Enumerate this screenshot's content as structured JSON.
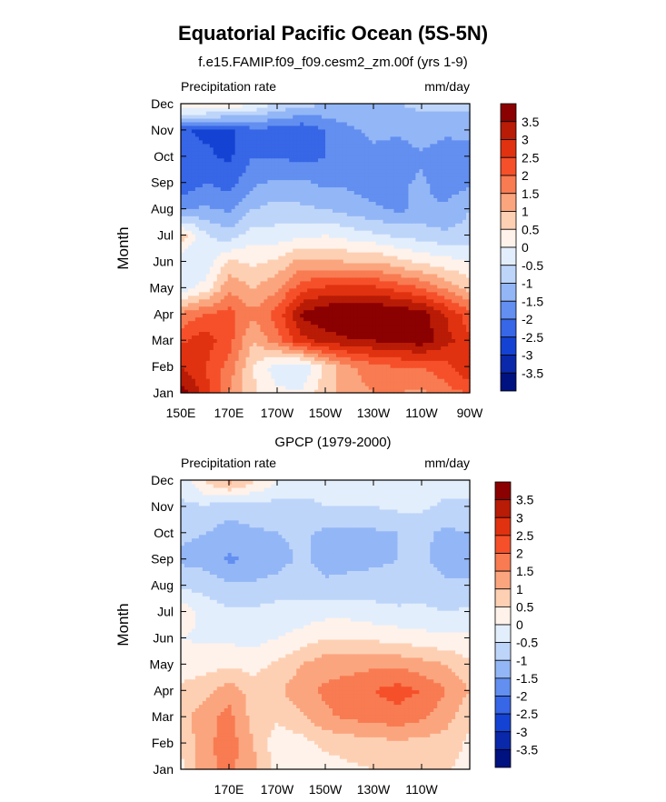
{
  "title": "Equatorial Pacific Ocean (5S-5N)",
  "subtitle": "f.e15.FAMIP.f09_f09.cesm2_zm.00f (yrs 1-9)",
  "chart_data": [
    {
      "type": "heatmap",
      "left_label": "Precipitation rate",
      "right_label": "mm/day",
      "ylabel": "Month",
      "xticklabels": [
        "150E",
        "170E",
        "170W",
        "150W",
        "130W",
        "110W",
        "90W"
      ],
      "yticklabels": [
        "Jan",
        "Feb",
        "Mar",
        "Apr",
        "May",
        "Jun",
        "Jul",
        "Aug",
        "Sep",
        "Oct",
        "Nov",
        "Dec"
      ],
      "xlim": [
        150,
        270
      ],
      "levels": [
        "3.5",
        "3",
        "2.5",
        "2",
        "1.5",
        "1",
        "0.5",
        "0",
        "-0.5",
        "-1",
        "-1.5",
        "-2",
        "-2.5",
        "-3",
        "-3.5"
      ],
      "colors": [
        "#8b0000",
        "#b81b06",
        "#e03210",
        "#f5502a",
        "#f87b52",
        "#fba57e",
        "#fdd0b4",
        "#fff2ea",
        "#e3eefc",
        "#bed5fa",
        "#93b6f6",
        "#628ff0",
        "#3766e6",
        "#1442d3",
        "#0a28aa",
        "#001180"
      ],
      "anomaly_values": [
        [
          3.8,
          2.8,
          1.5,
          0.6,
          0.1,
          0.1,
          0.8,
          1.3,
          1.5,
          1.5,
          1.4,
          1.8,
          2.0
        ],
        [
          3.0,
          2.5,
          1.8,
          0.5,
          -0.3,
          -0.5,
          0.6,
          1.4,
          1.8,
          2.0,
          2.0,
          2.3,
          3.0
        ],
        [
          2.4,
          2.8,
          2.2,
          1.0,
          1.8,
          2.8,
          3.2,
          3.4,
          3.5,
          3.6,
          3.8,
          3.2,
          2.6
        ],
        [
          1.6,
          2.0,
          2.2,
          1.6,
          2.2,
          3.6,
          4.0,
          4.2,
          4.2,
          4.0,
          3.8,
          3.0,
          2.2
        ],
        [
          -0.3,
          0.2,
          1.4,
          1.0,
          1.4,
          2.3,
          2.6,
          2.6,
          2.6,
          2.3,
          2.0,
          1.4,
          0.8
        ],
        [
          -0.5,
          -0.4,
          0.6,
          0.4,
          0.6,
          1.2,
          1.1,
          1.0,
          1.0,
          0.7,
          0.4,
          0.2,
          0.0
        ],
        [
          0.8,
          -0.4,
          -0.8,
          -0.2,
          -0.3,
          -0.1,
          0.0,
          -0.2,
          -0.4,
          -0.6,
          -0.7,
          -0.9,
          -0.8
        ],
        [
          -1.6,
          -1.4,
          -1.6,
          -1.0,
          -0.8,
          -0.9,
          -1.0,
          -1.2,
          -1.4,
          -1.6,
          -1.4,
          -1.4,
          -1.0
        ],
        [
          -2.4,
          -2.0,
          -2.2,
          -1.6,
          -1.4,
          -1.4,
          -1.6,
          -1.6,
          -1.8,
          -1.6,
          -1.4,
          -1.8,
          -1.6
        ],
        [
          -2.4,
          -2.4,
          -2.6,
          -2.0,
          -2.0,
          -2.2,
          -2.0,
          -1.8,
          -1.6,
          -1.8,
          -1.6,
          -1.8,
          -1.8
        ],
        [
          -2.4,
          -2.6,
          -2.6,
          -2.2,
          -2.2,
          -2.4,
          -2.0,
          -1.6,
          -1.4,
          -1.4,
          -1.2,
          -1.4,
          -1.3
        ],
        [
          0.5,
          0.6,
          0.4,
          0.0,
          -0.6,
          -0.8,
          -1.0,
          -1.0,
          -1.0,
          -1.0,
          -0.9,
          -0.8,
          -0.9
        ]
      ]
    },
    {
      "type": "heatmap",
      "title": "GPCP (1979-2000)",
      "left_label": "Precipitation rate",
      "right_label": "mm/day",
      "ylabel": "Month",
      "xticklabels": [
        "170E",
        "170W",
        "150W",
        "130W",
        "110W"
      ],
      "yticklabels": [
        "Jan",
        "Feb",
        "Mar",
        "Apr",
        "May",
        "Jun",
        "Jul",
        "Aug",
        "Sep",
        "Oct",
        "Nov",
        "Dec"
      ],
      "xlim": [
        150,
        270
      ],
      "levels": [
        "3.5",
        "3",
        "2.5",
        "2",
        "1.5",
        "1",
        "0.5",
        "0",
        "-0.5",
        "-1",
        "-1.5",
        "-2",
        "-2.5",
        "-3",
        "-3.5"
      ],
      "colors": [
        "#8b0000",
        "#b81b06",
        "#e03210",
        "#f5502a",
        "#f87b52",
        "#fba57e",
        "#fdd0b4",
        "#fff2ea",
        "#e3eefc",
        "#bed5fa",
        "#93b6f6",
        "#628ff0",
        "#3766e6",
        "#1442d3",
        "#0a28aa",
        "#001180"
      ],
      "anomaly_values": [
        [
          0.3,
          1.4,
          1.6,
          1.2,
          0.3,
          0.2,
          0.3,
          0.4,
          0.5,
          0.6,
          0.5,
          0.6,
          0.2
        ],
        [
          0.6,
          1.3,
          1.8,
          1.0,
          0.2,
          0.3,
          0.6,
          0.7,
          0.8,
          0.9,
          0.8,
          0.8,
          0.4
        ],
        [
          0.8,
          1.3,
          1.7,
          0.8,
          0.6,
          0.9,
          1.4,
          1.6,
          1.7,
          1.8,
          1.6,
          1.2,
          0.6
        ],
        [
          0.6,
          0.8,
          1.3,
          0.8,
          0.9,
          1.3,
          1.6,
          1.8,
          2.0,
          2.2,
          2.0,
          1.5,
          1.0
        ],
        [
          0.3,
          0.3,
          0.4,
          0.3,
          0.6,
          1.0,
          1.3,
          1.3,
          1.4,
          1.4,
          1.2,
          1.0,
          0.6
        ],
        [
          0.0,
          -0.1,
          -0.1,
          -0.2,
          0.0,
          0.2,
          0.5,
          0.5,
          0.4,
          0.3,
          0.2,
          0.1,
          0.1
        ],
        [
          0.4,
          -0.2,
          -0.4,
          -0.4,
          -0.3,
          -0.3,
          -0.2,
          -0.2,
          -0.3,
          -0.4,
          -0.4,
          -0.5,
          -0.4
        ],
        [
          -0.6,
          -0.7,
          -0.9,
          -0.9,
          -0.8,
          -0.7,
          -0.9,
          -0.8,
          -0.8,
          -0.8,
          -0.7,
          -0.9,
          -0.9
        ],
        [
          -1.1,
          -1.2,
          -1.6,
          -1.4,
          -1.2,
          -0.9,
          -1.2,
          -1.2,
          -1.1,
          -1.0,
          -0.9,
          -1.2,
          -1.2
        ],
        [
          -0.9,
          -1.0,
          -1.2,
          -1.1,
          -1.0,
          -0.9,
          -1.1,
          -1.1,
          -1.1,
          -1.0,
          -0.9,
          -1.1,
          -1.0
        ],
        [
          -0.6,
          -0.6,
          -0.8,
          -0.7,
          -0.7,
          -0.6,
          -0.5,
          -0.5,
          -0.5,
          -0.4,
          -0.4,
          -0.6,
          -0.6
        ],
        [
          -0.4,
          0.6,
          1.2,
          0.6,
          0.0,
          -0.3,
          -0.4,
          -0.3,
          -0.3,
          -0.3,
          -0.3,
          -0.3,
          -0.2
        ]
      ]
    }
  ]
}
